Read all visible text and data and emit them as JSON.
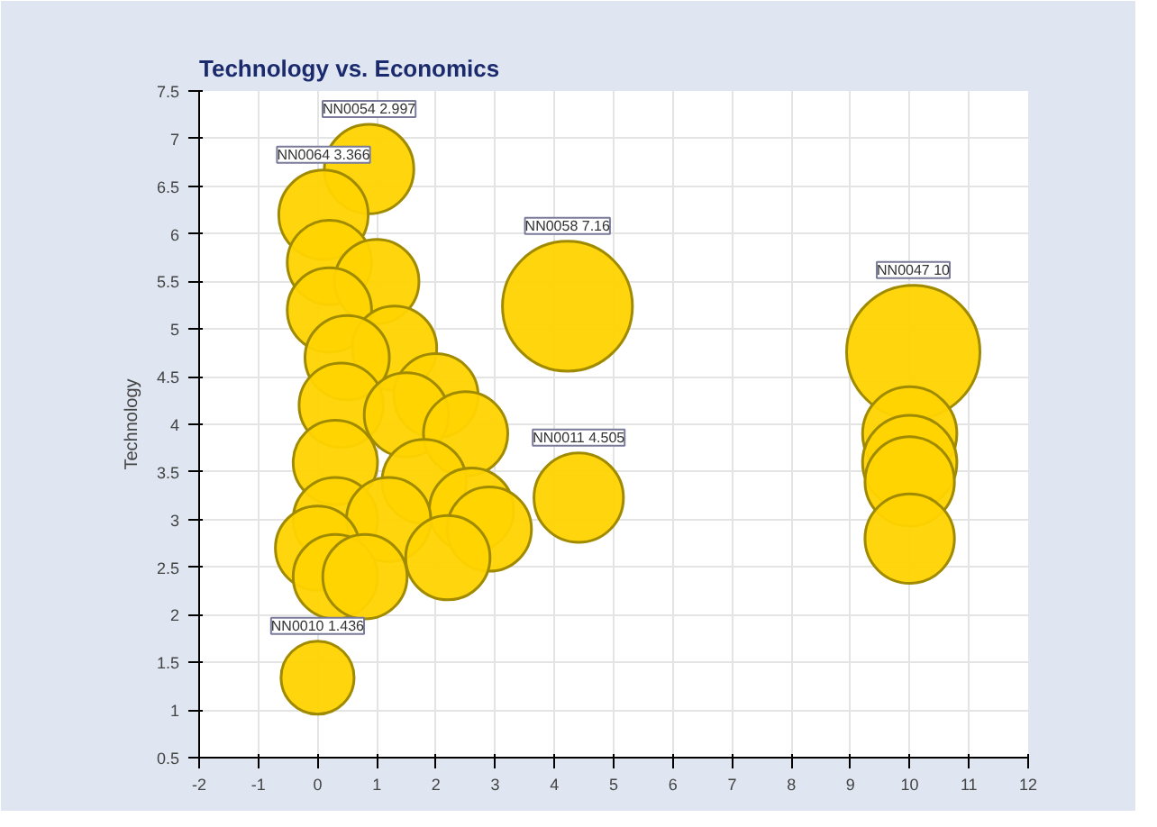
{
  "chart_data": {
    "type": "bubble",
    "title": "Technology vs. Economics",
    "ylabel": "Technology",
    "color": "#ffd400",
    "x": [
      0.0,
      4.22,
      4.41,
      10.06,
      10.0,
      10.0,
      10.0,
      10.0,
      0.87,
      0.1,
      0.2,
      1.0,
      0.2,
      1.3,
      0.5,
      2.0,
      0.4,
      1.5,
      2.5,
      0.3,
      1.8,
      2.6,
      0.3,
      1.2,
      2.9,
      2.2,
      0.0,
      0.3,
      0.8
    ],
    "values": [
      1.34,
      5.24,
      3.23,
      4.76,
      3.9,
      3.6,
      3.4,
      2.8,
      6.68,
      6.2,
      5.7,
      5.5,
      5.2,
      4.8,
      4.7,
      4.3,
      4.2,
      4.1,
      3.9,
      3.6,
      3.4,
      3.1,
      3.0,
      3.0,
      2.9,
      2.6,
      2.7,
      2.4,
      2.4
    ],
    "sizes": [
      0.3,
      0.95,
      0.45,
      1,
      0.5,
      0.5,
      0.45,
      0.45,
      0.45,
      0.45,
      0.4,
      0.4,
      0.4,
      0.4,
      0.4,
      0.4,
      0.4,
      0.4,
      0.4,
      0.4,
      0.4,
      0.4,
      0.4,
      0.4,
      0.4,
      0.4,
      0.4,
      0.4,
      0.4
    ],
    "value_labels": [
      "NN0010 1.436",
      "NN0058 7.16",
      "NN0011 4.505",
      "NN0047 10",
      null,
      null,
      null,
      null,
      "NN0054 2.997",
      "NN0064 3.366",
      null,
      null,
      null,
      null,
      null,
      null,
      null,
      null,
      null,
      null,
      null,
      null,
      null,
      null,
      null,
      null,
      null,
      null,
      null
    ],
    "xlim": [
      -2,
      12
    ],
    "ylim": [
      0.5,
      7.5
    ],
    "xticks": [
      -2,
      -1,
      0,
      1,
      2,
      3,
      4,
      5,
      6,
      7,
      8,
      9,
      10,
      11,
      12
    ],
    "yticks": [
      0.5,
      1,
      1.5,
      2,
      2.5,
      3,
      3.5,
      4,
      4.5,
      5,
      5.5,
      6,
      6.5,
      7,
      7.5
    ],
    "grid": true
  }
}
